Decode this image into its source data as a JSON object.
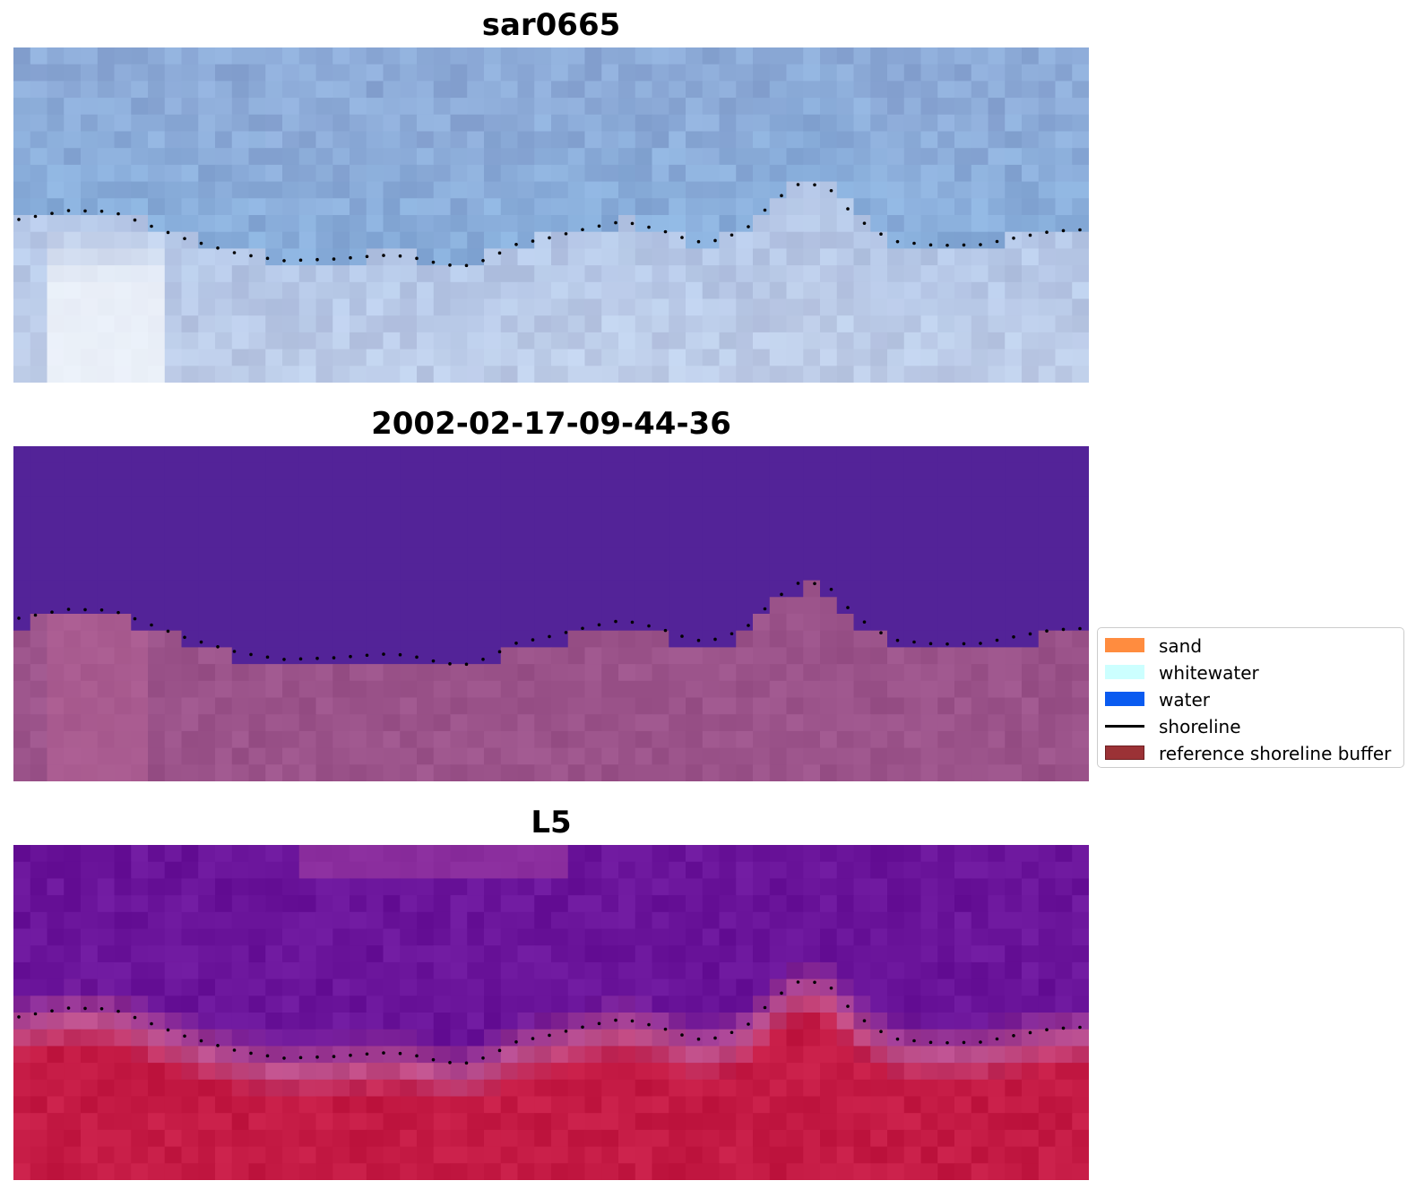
{
  "panels": [
    {
      "title": "sar0665",
      "style": "sar"
    },
    {
      "title": "2002-02-17-09-44-36",
      "style": "class"
    },
    {
      "title": "L5",
      "style": "index"
    }
  ],
  "legend": {
    "items": [
      {
        "label": "sand",
        "color": "#ff8c3f",
        "kind": "patch"
      },
      {
        "label": "whitewater",
        "color": "#ccffff",
        "kind": "patch"
      },
      {
        "label": "water",
        "color": "#0a5bf0",
        "kind": "patch"
      },
      {
        "label": "shoreline",
        "color": "#000000",
        "kind": "line"
      },
      {
        "label": "reference shoreline buffer",
        "color": "#9b3236",
        "kind": "patch"
      }
    ]
  },
  "colors": {
    "sar_water": "#88aedb",
    "sar_land": "#b4c6e6",
    "class_water": "#532398",
    "class_land": "#9b538a",
    "index_water": "#6a149a",
    "index_land": "#c41a44",
    "shoreline_dots": "#000000"
  }
}
